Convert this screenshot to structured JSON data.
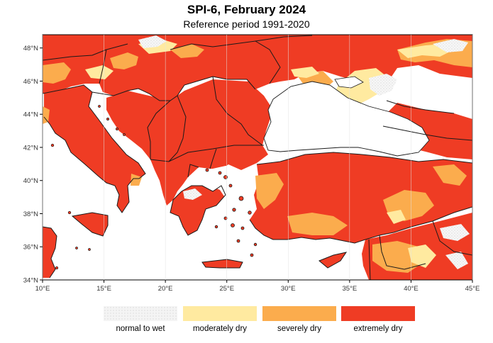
{
  "title": "SPI-6, February 2024",
  "subtitle": "Reference period 1991-2020",
  "map": {
    "lon_range": [
      10,
      45
    ],
    "lat_range": [
      34,
      48.8
    ],
    "x_ticks": [
      "10°E",
      "15°E",
      "20°E",
      "25°E",
      "30°E",
      "35°E",
      "40°E",
      "45°E"
    ],
    "y_ticks": [
      "34°N",
      "36°N",
      "38°N",
      "40°N",
      "42°N",
      "44°N",
      "46°N",
      "48°N"
    ],
    "colors": {
      "sea": "#ffffff",
      "normal_to_wet": "#f4f4f4",
      "moderately_dry": "#ffeaa0",
      "severely_dry": "#fbac4d",
      "extremely_dry": "#ef3c24",
      "border": "#1a1a1a"
    }
  },
  "legend": [
    {
      "label": "normal to wet",
      "color": "#f4f4f4",
      "pattern": true
    },
    {
      "label": "moderately dry",
      "color": "#ffeaa0"
    },
    {
      "label": "severely dry",
      "color": "#fbac4d"
    },
    {
      "label": "extremely dry",
      "color": "#ef3c24"
    }
  ]
}
